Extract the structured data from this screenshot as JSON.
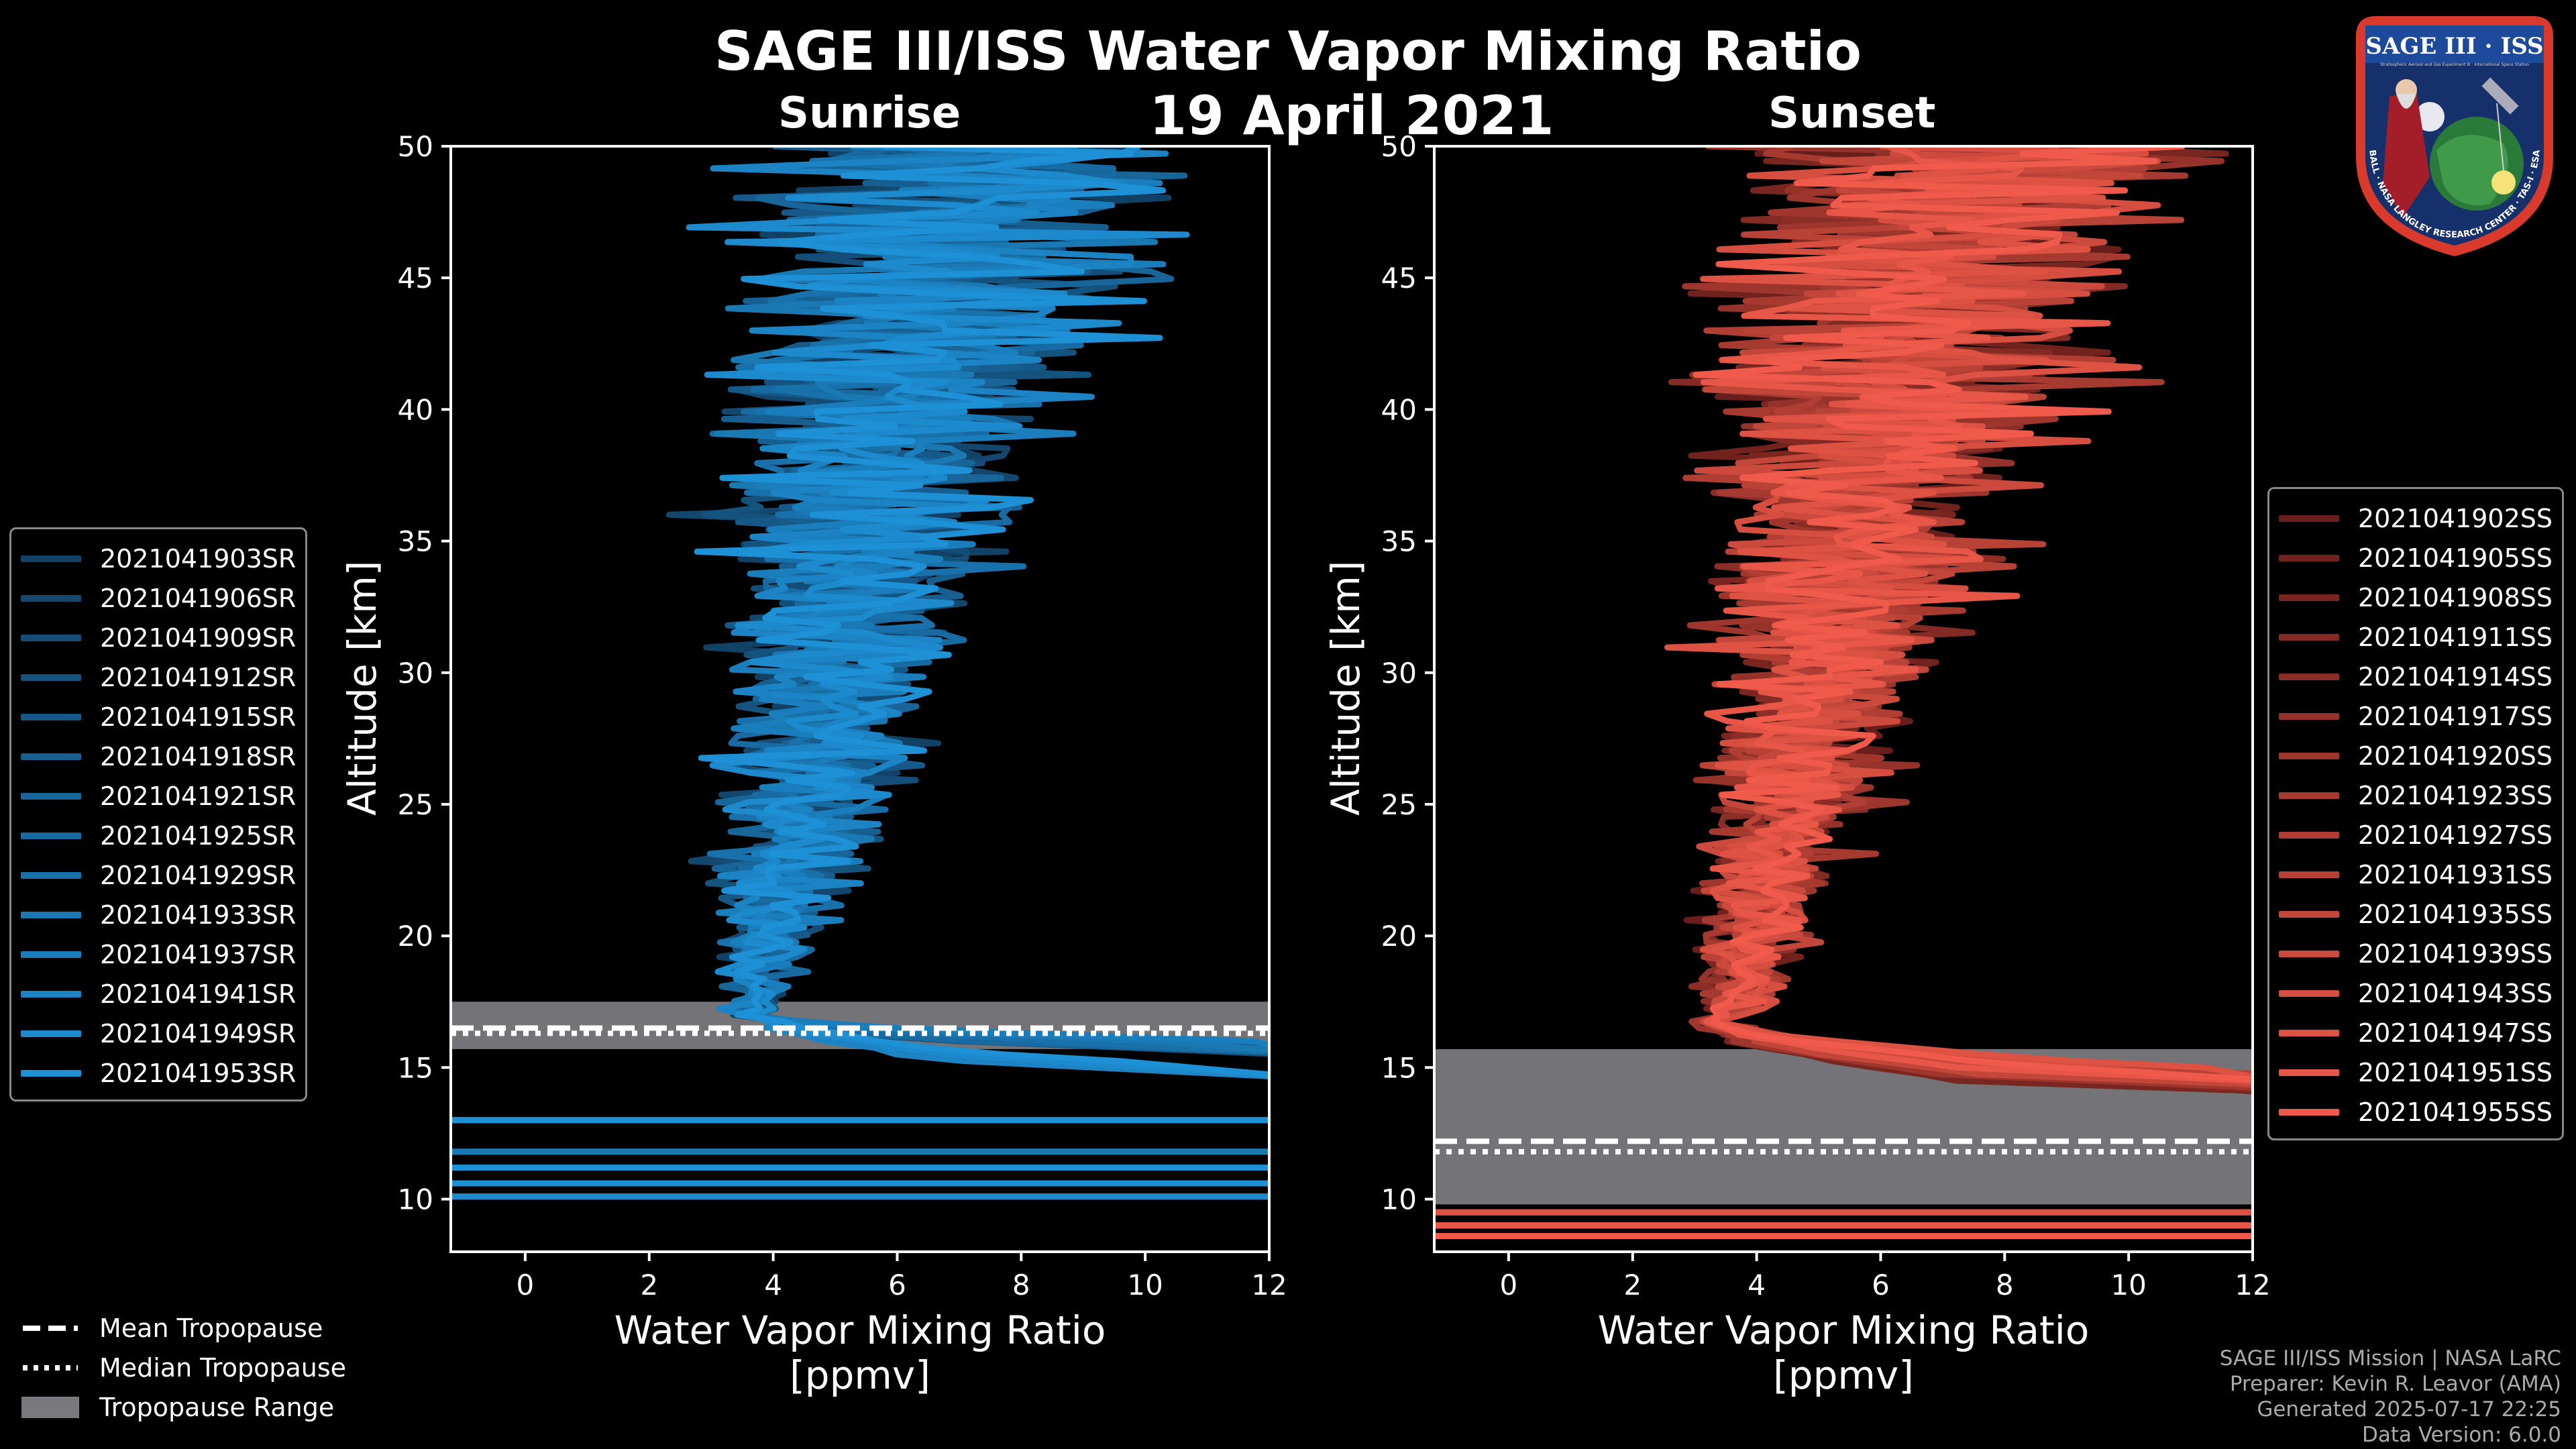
{
  "header": {
    "title": "SAGE III/ISS Water Vapor Mixing Ratio",
    "date": "19 April 2021"
  },
  "logo": {
    "top_text": "SAGE III · ISS",
    "sub_text": "Stratospheric Aerosol and Gas Experiment III · International Space Station",
    "ring_text": "BALL · NASA LANGLEY RESEARCH CENTER · TAS-I · ESA"
  },
  "legend_common": {
    "mean": "Mean Tropopause",
    "median": "Median Tropopause",
    "range": "Tropopause Range"
  },
  "credits": {
    "line1": "SAGE III/ISS Mission | NASA LaRC",
    "line2": "Preparer: Kevin R. Leavor (AMA)",
    "line3": "Generated 2025-07-17 22:25",
    "line4": "Data Version: 6.0.0"
  },
  "colors": {
    "sunrise": "#1e90d6",
    "sunset": "#f05a4a",
    "tropopause_band": "#7a7a7e"
  },
  "chart_data": [
    {
      "type": "line",
      "title": "Sunrise",
      "xlabel": "Water Vapor Mixing Ratio\n[ppmv]",
      "ylabel": "Altitude [km]",
      "xlim": [
        -1.2,
        12
      ],
      "ylim": [
        8,
        50
      ],
      "xticks": [
        0,
        2,
        4,
        6,
        8,
        10,
        12
      ],
      "yticks": [
        10,
        15,
        20,
        25,
        30,
        35,
        40,
        45,
        50
      ],
      "tropopause": {
        "mean": 16.5,
        "median": 16.3,
        "range": [
          15.7,
          17.5
        ]
      },
      "series": [
        {
          "name": "2021041903SR"
        },
        {
          "name": "2021041906SR"
        },
        {
          "name": "2021041909SR"
        },
        {
          "name": "2021041912SR"
        },
        {
          "name": "2021041915SR"
        },
        {
          "name": "2021041918SR"
        },
        {
          "name": "2021041921SR"
        },
        {
          "name": "2021041925SR"
        },
        {
          "name": "2021041929SR"
        },
        {
          "name": "2021041933SR"
        },
        {
          "name": "2021041937SR"
        },
        {
          "name": "2021041941SR"
        },
        {
          "name": "2021041949SR"
        },
        {
          "name": "2021041953SR"
        }
      ]
    },
    {
      "type": "line",
      "title": "Sunset",
      "xlabel": "Water Vapor Mixing Ratio\n[ppmv]",
      "ylabel": "Altitude [km]",
      "xlim": [
        -1.2,
        12
      ],
      "ylim": [
        8,
        50
      ],
      "xticks": [
        0,
        2,
        4,
        6,
        8,
        10,
        12
      ],
      "yticks": [
        10,
        15,
        20,
        25,
        30,
        35,
        40,
        45,
        50
      ],
      "tropopause": {
        "mean": 12.2,
        "median": 11.8,
        "range": [
          9.8,
          15.7
        ]
      },
      "series": [
        {
          "name": "2021041902SS"
        },
        {
          "name": "2021041905SS"
        },
        {
          "name": "2021041908SS"
        },
        {
          "name": "2021041911SS"
        },
        {
          "name": "2021041914SS"
        },
        {
          "name": "2021041917SS"
        },
        {
          "name": "2021041920SS"
        },
        {
          "name": "2021041923SS"
        },
        {
          "name": "2021041927SS"
        },
        {
          "name": "2021041931SS"
        },
        {
          "name": "2021041935SS"
        },
        {
          "name": "2021041939SS"
        },
        {
          "name": "2021041943SS"
        },
        {
          "name": "2021041947SS"
        },
        {
          "name": "2021041951SS"
        },
        {
          "name": "2021041955SS"
        }
      ]
    }
  ]
}
